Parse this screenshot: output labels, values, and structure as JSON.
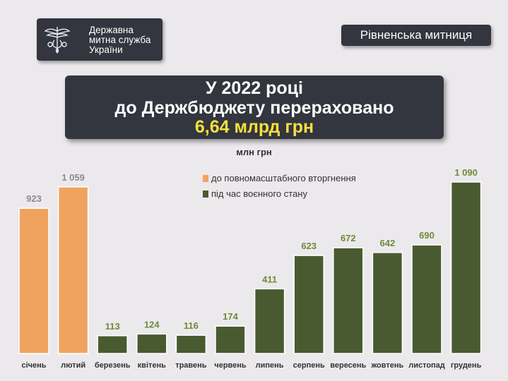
{
  "logo": {
    "lines": [
      "Державна",
      "митна служба",
      "України"
    ]
  },
  "customs_office": "Рівненська митниця",
  "headline": {
    "line1": "У 2022 році",
    "line2": "до Держбюджету перераховано",
    "line3": "6,64 млрд грн"
  },
  "colors": {
    "before": "#f0a35e",
    "during": "#4a5a30",
    "label_before": "#8c8c8c",
    "label_during": "#6f8a3a",
    "highlight": "#f5e03a",
    "panel": "#33353f"
  },
  "chart_data": {
    "type": "bar",
    "unit": "млн грн",
    "categories": [
      "січень",
      "лютий",
      "березень",
      "квітень",
      "травень",
      "червень",
      "липень",
      "серпень",
      "вересень",
      "жовтень",
      "листопад",
      "грудень"
    ],
    "series": [
      {
        "name": "до повномасштабного вторгнення",
        "values": [
          923,
          1059,
          null,
          null,
          null,
          null,
          null,
          null,
          null,
          null,
          null,
          null
        ]
      },
      {
        "name": "під час воєнного стану",
        "values": [
          null,
          null,
          113,
          124,
          116,
          174,
          411,
          623,
          672,
          642,
          690,
          1090
        ]
      }
    ],
    "value_labels": [
      "923",
      "1 059",
      "113",
      "124",
      "116",
      "174",
      "411",
      "623",
      "672",
      "642",
      "690",
      "1 090"
    ],
    "legend": [
      "до повномасштабного вторгнення",
      "під час воєнного стану"
    ],
    "legend_position": "top-center",
    "ylim": [
      0,
      1090
    ],
    "grid": false
  }
}
